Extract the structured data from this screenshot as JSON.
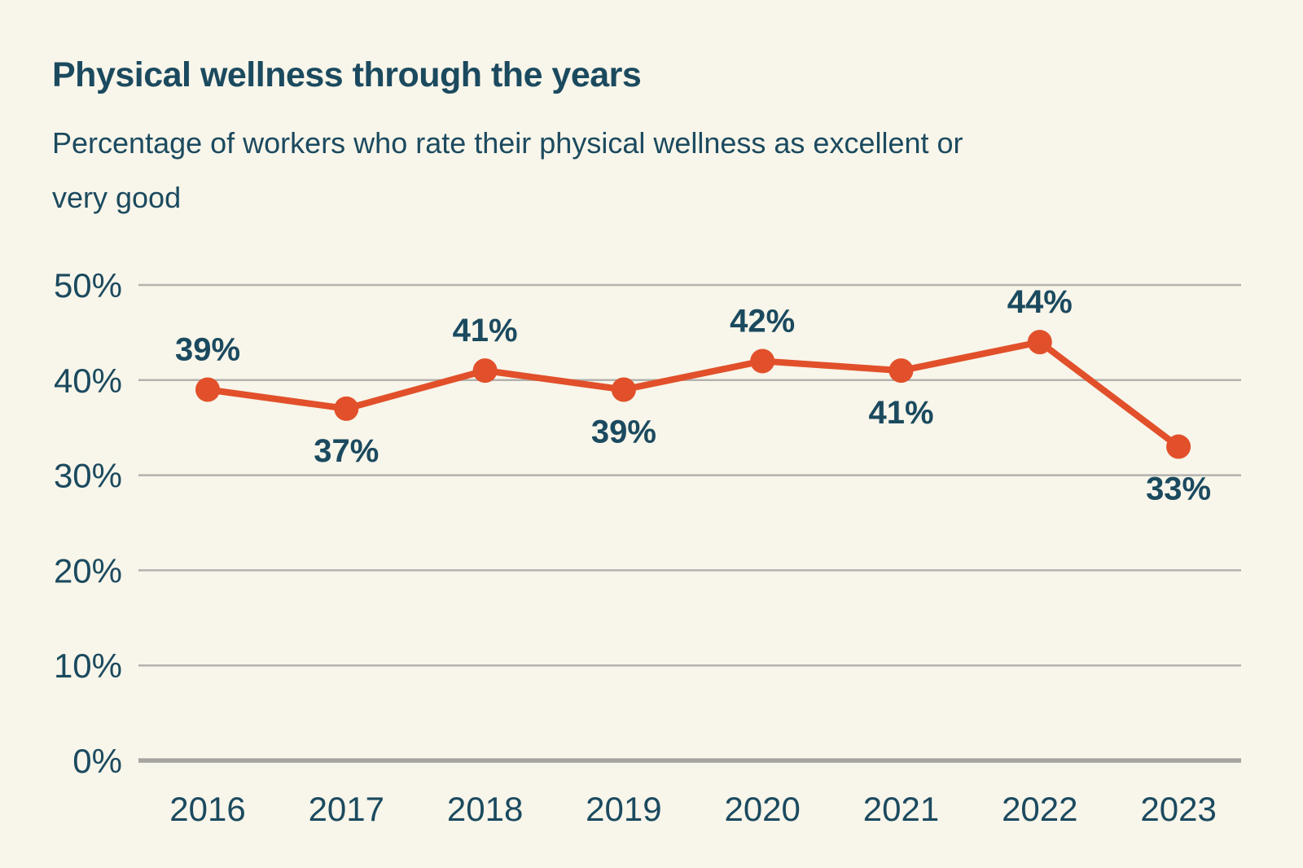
{
  "page": {
    "background_color": "#f8f5ea"
  },
  "header": {
    "title": "Physical wellness through the years",
    "subtitle": "Percentage of workers who rate their physical wellness as excellent or very good",
    "subtitle_line1": "Percentage of workers who rate their physical wellness as excellent or",
    "subtitle_line2": "very good"
  },
  "colors": {
    "text_navy": "#1b4a5f",
    "line_orange": "#e1502a",
    "gridline_gray": "#b3b2ae",
    "baseline_gray": "#a6a5a2",
    "background_cream": "#f8f5ea"
  },
  "chart_data": {
    "type": "line",
    "title": "Physical wellness through the years",
    "subtitle": "Percentage of workers who rate their physical wellness as excellent or very good",
    "categories": [
      "2016",
      "2017",
      "2018",
      "2019",
      "2020",
      "2021",
      "2022",
      "2023"
    ],
    "values": [
      39,
      37,
      41,
      39,
      42,
      41,
      44,
      33
    ],
    "value_labels": [
      "39%",
      "37%",
      "41%",
      "39%",
      "42%",
      "41%",
      "44%",
      "33%"
    ],
    "label_position": [
      "above",
      "below",
      "above",
      "below",
      "above",
      "below",
      "above",
      "below"
    ],
    "y_ticks": [
      {
        "label": "0%",
        "value": 0
      },
      {
        "label": "10%",
        "value": 10
      },
      {
        "label": "20%",
        "value": 20
      },
      {
        "label": "30%",
        "value": 30
      },
      {
        "label": "40%",
        "value": 40
      },
      {
        "label": "50%",
        "value": 50
      }
    ],
    "ylim": [
      0,
      50
    ],
    "xlabel": "",
    "ylabel": "",
    "grid": true,
    "legend": "none",
    "line_color": "#e1502a",
    "marker": "circle",
    "label_color": "#1b4a5f"
  }
}
